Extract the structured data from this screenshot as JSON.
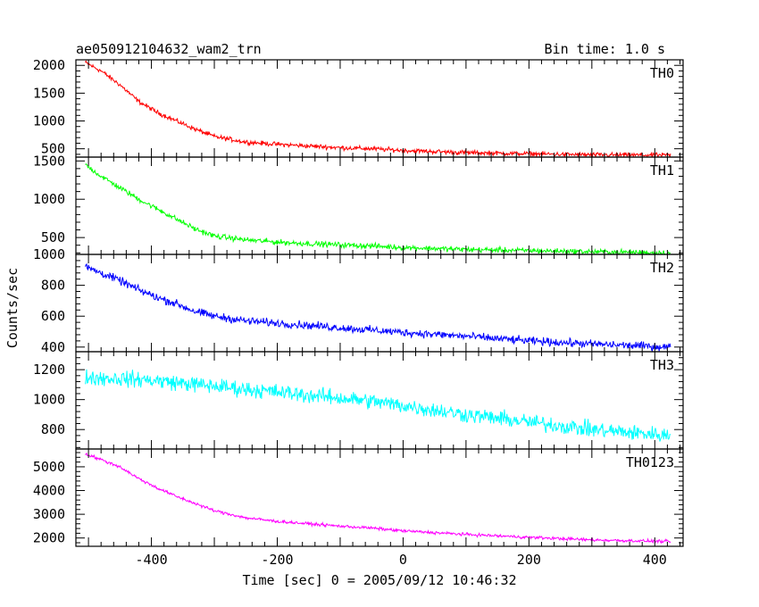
{
  "header": {
    "title": "ae050912104632_wam2_trn",
    "bin_time": "Bin time: 1.0 s"
  },
  "chart_data": {
    "type": "line",
    "xlabel": "Time [sec] 0 = 2005/09/12 10:46:32",
    "ylabel": "Counts/sec",
    "xlim": [
      -520,
      445
    ],
    "x_ticks": [
      -400,
      -200,
      0,
      200,
      400
    ],
    "x_range_data": [
      -505,
      425
    ],
    "panels": [
      {
        "name": "TH0",
        "color": "#ff0000",
        "ylim": [
          350,
          2100
        ],
        "y_ticks": [
          500,
          1000,
          1500,
          2000
        ],
        "noise": 35,
        "trend": [
          [
            -505,
            2050
          ],
          [
            -480,
            1900
          ],
          [
            -450,
            1650
          ],
          [
            -420,
            1350
          ],
          [
            -390,
            1150
          ],
          [
            -360,
            1000
          ],
          [
            -330,
            850
          ],
          [
            -300,
            720
          ],
          [
            -250,
            620
          ],
          [
            -200,
            580
          ],
          [
            -150,
            550
          ],
          [
            -100,
            520
          ],
          [
            -50,
            500
          ],
          [
            0,
            470
          ],
          [
            100,
            430
          ],
          [
            200,
            410
          ],
          [
            300,
            390
          ],
          [
            425,
            385
          ]
        ]
      },
      {
        "name": "TH1",
        "color": "#00ff00",
        "ylim": [
          280,
          1550
        ],
        "y_ticks": [
          500,
          1000,
          1500
        ],
        "noise": 30,
        "trend": [
          [
            -505,
            1450
          ],
          [
            -480,
            1300
          ],
          [
            -450,
            1150
          ],
          [
            -420,
            1000
          ],
          [
            -390,
            870
          ],
          [
            -360,
            740
          ],
          [
            -330,
            610
          ],
          [
            -300,
            520
          ],
          [
            -250,
            470
          ],
          [
            -200,
            440
          ],
          [
            -150,
            420
          ],
          [
            -100,
            405
          ],
          [
            -50,
            390
          ],
          [
            0,
            370
          ],
          [
            100,
            345
          ],
          [
            200,
            330
          ],
          [
            300,
            315
          ],
          [
            425,
            300
          ]
        ]
      },
      {
        "name": "TH2",
        "color": "#0000ff",
        "ylim": [
          370,
          1000
        ],
        "y_ticks": [
          400,
          600,
          800,
          1000
        ],
        "noise": 22,
        "trend": [
          [
            -505,
            920
          ],
          [
            -480,
            880
          ],
          [
            -450,
            830
          ],
          [
            -420,
            770
          ],
          [
            -390,
            720
          ],
          [
            -360,
            680
          ],
          [
            -330,
            630
          ],
          [
            -300,
            600
          ],
          [
            -250,
            570
          ],
          [
            -200,
            555
          ],
          [
            -150,
            540
          ],
          [
            -100,
            525
          ],
          [
            -50,
            510
          ],
          [
            0,
            495
          ],
          [
            100,
            470
          ],
          [
            200,
            440
          ],
          [
            300,
            420
          ],
          [
            425,
            400
          ]
        ]
      },
      {
        "name": "TH3",
        "color": "#00ffff",
        "ylim": [
          670,
          1320
        ],
        "y_ticks": [
          800,
          1000,
          1200
        ],
        "noise": 45,
        "trend": [
          [
            -505,
            1150
          ],
          [
            -450,
            1140
          ],
          [
            -400,
            1130
          ],
          [
            -350,
            1110
          ],
          [
            -300,
            1090
          ],
          [
            -250,
            1070
          ],
          [
            -200,
            1050
          ],
          [
            -150,
            1030
          ],
          [
            -100,
            1010
          ],
          [
            -50,
            990
          ],
          [
            0,
            960
          ],
          [
            100,
            900
          ],
          [
            200,
            850
          ],
          [
            300,
            800
          ],
          [
            425,
            760
          ]
        ]
      },
      {
        "name": "TH0123",
        "color": "#ff00ff",
        "ylim": [
          1650,
          5750
        ],
        "y_ticks": [
          2000,
          3000,
          4000,
          5000
        ],
        "noise": 55,
        "trend": [
          [
            -505,
            5550
          ],
          [
            -480,
            5300
          ],
          [
            -450,
            5000
          ],
          [
            -420,
            4500
          ],
          [
            -390,
            4100
          ],
          [
            -360,
            3750
          ],
          [
            -330,
            3450
          ],
          [
            -300,
            3150
          ],
          [
            -250,
            2850
          ],
          [
            -200,
            2700
          ],
          [
            -150,
            2600
          ],
          [
            -100,
            2500
          ],
          [
            -50,
            2420
          ],
          [
            0,
            2300
          ],
          [
            100,
            2150
          ],
          [
            200,
            2030
          ],
          [
            300,
            1920
          ],
          [
            425,
            1850
          ]
        ]
      }
    ]
  }
}
